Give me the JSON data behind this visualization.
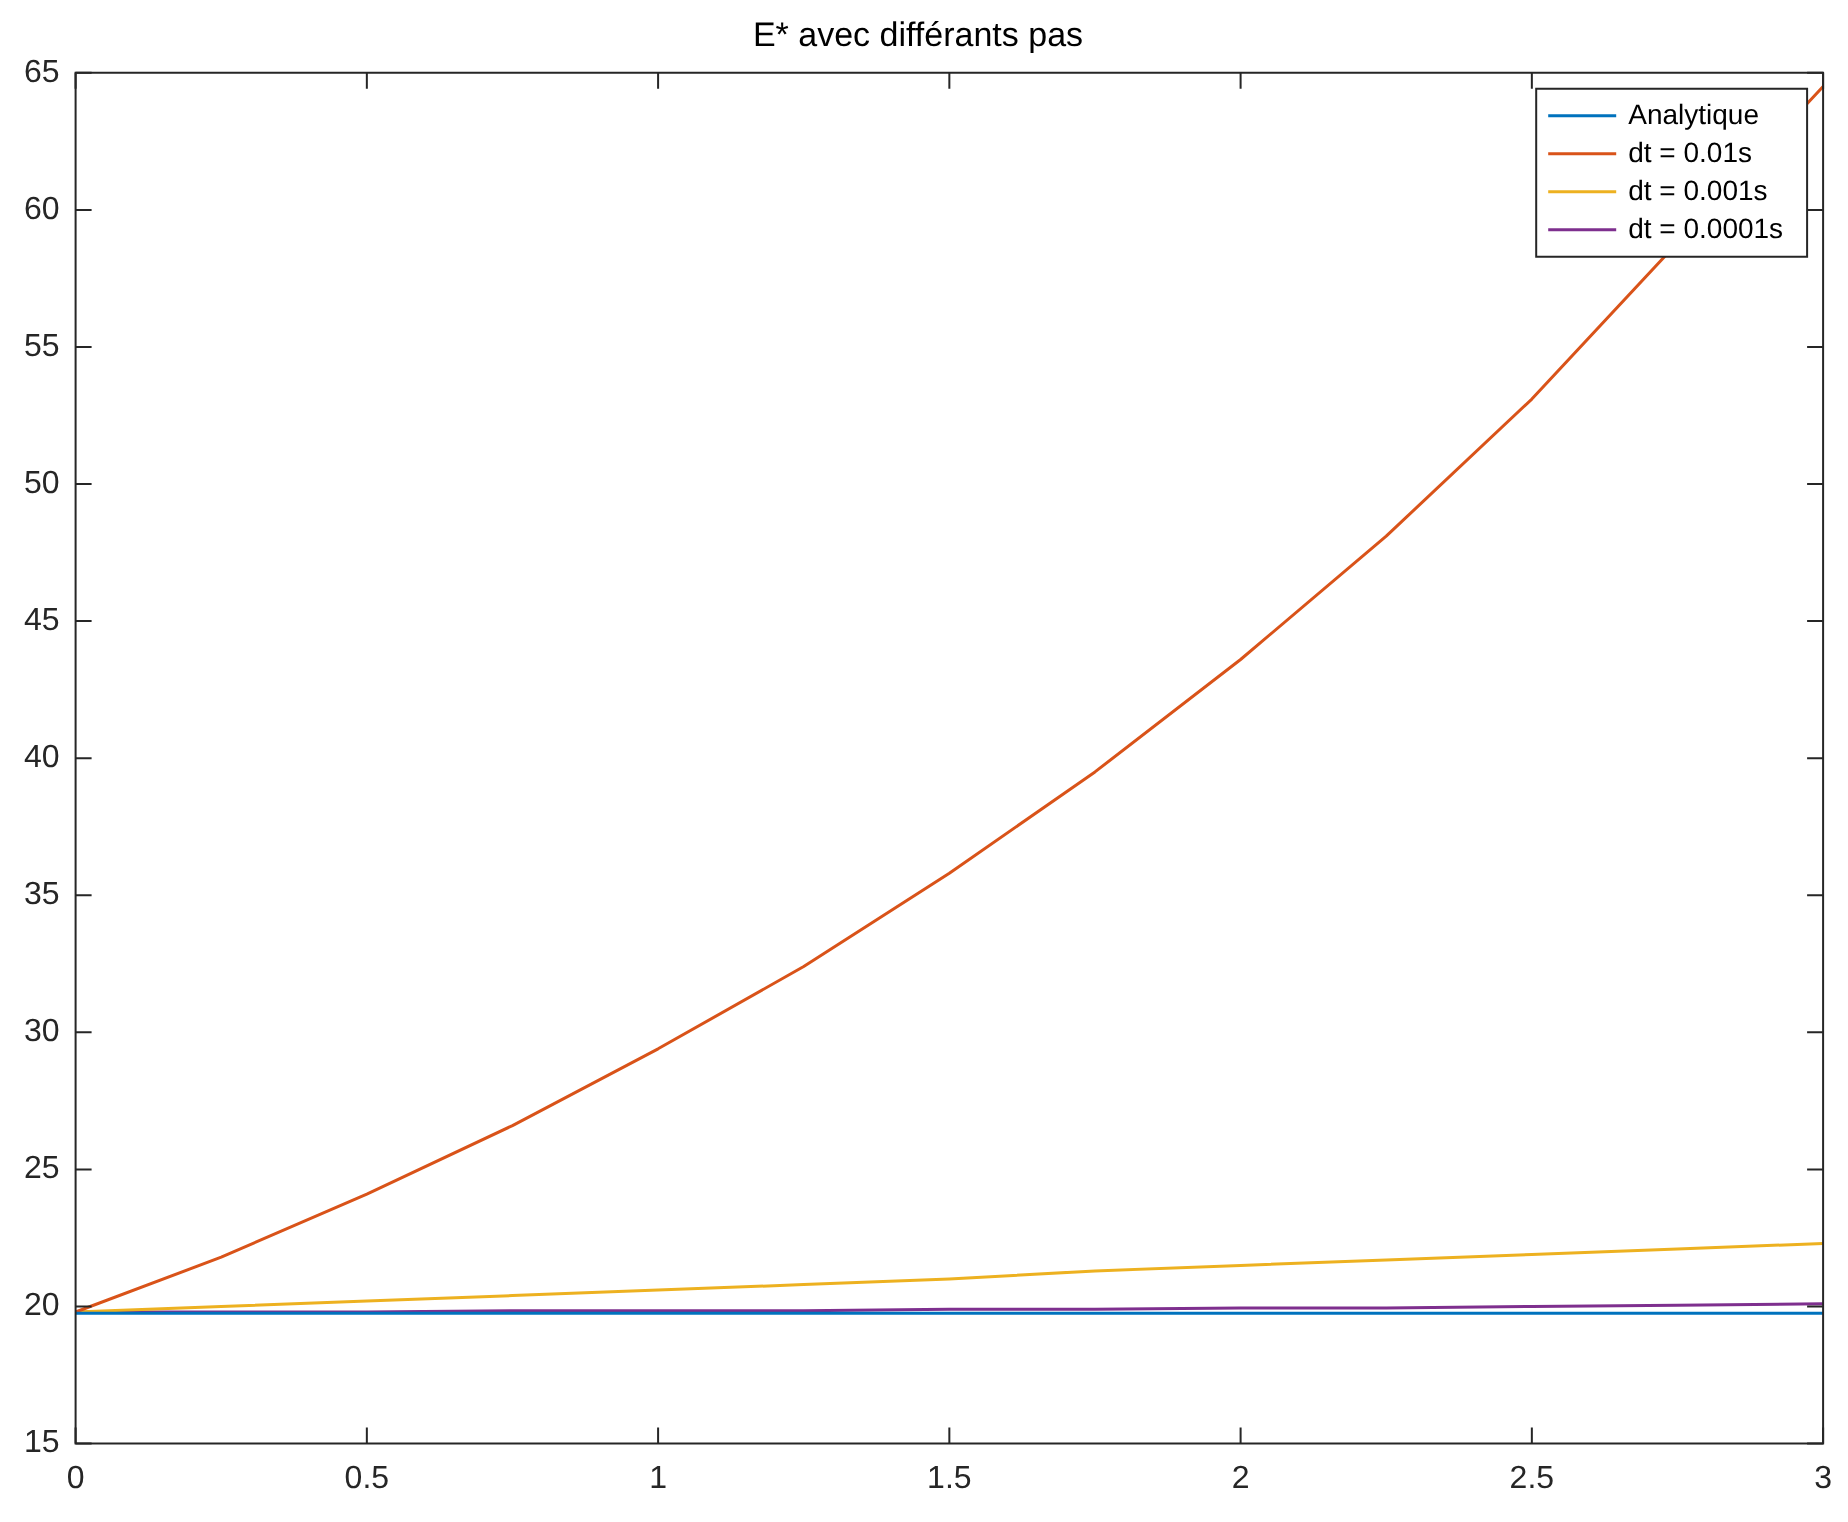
{
  "chart_data": {
    "type": "line",
    "title": "E* avec différants pas",
    "x": [
      0,
      0.25,
      0.5,
      0.75,
      1,
      1.25,
      1.5,
      1.75,
      2,
      2.25,
      2.5,
      2.75,
      3
    ],
    "series": [
      {
        "name": "Analytique",
        "color": "#0072bd",
        "values": [
          19.75,
          19.75,
          19.75,
          19.75,
          19.75,
          19.75,
          19.75,
          19.75,
          19.75,
          19.75,
          19.75,
          19.75,
          19.75
        ]
      },
      {
        "name": "dt = 0.01s",
        "color": "#d95319",
        "values": [
          19.8,
          21.8,
          24.1,
          26.6,
          29.4,
          32.4,
          35.8,
          39.5,
          43.6,
          48.1,
          53.1,
          null,
          64.5
        ]
      },
      {
        "name": "dt = 0.001s",
        "color": "#edb120",
        "values": [
          19.8,
          20.0,
          20.2,
          20.4,
          20.6,
          20.8,
          21.0,
          21.3,
          21.5,
          21.7,
          21.9,
          22.1,
          22.3
        ]
      },
      {
        "name": "dt = 0.0001s",
        "color": "#7e2f8e",
        "values": [
          19.8,
          19.8,
          19.8,
          19.85,
          19.85,
          19.85,
          19.9,
          19.9,
          19.95,
          19.95,
          20.0,
          20.05,
          20.1
        ]
      }
    ],
    "xlim": [
      0,
      3
    ],
    "xticks": [
      0,
      0.5,
      1,
      1.5,
      2,
      2.5,
      3
    ],
    "ylim": [
      15,
      65
    ],
    "yticks": [
      15,
      20,
      25,
      30,
      35,
      40,
      45,
      50,
      55,
      60,
      65
    ],
    "grid": false,
    "legend": "top right",
    "marker": "none",
    "line_style": "solid"
  }
}
